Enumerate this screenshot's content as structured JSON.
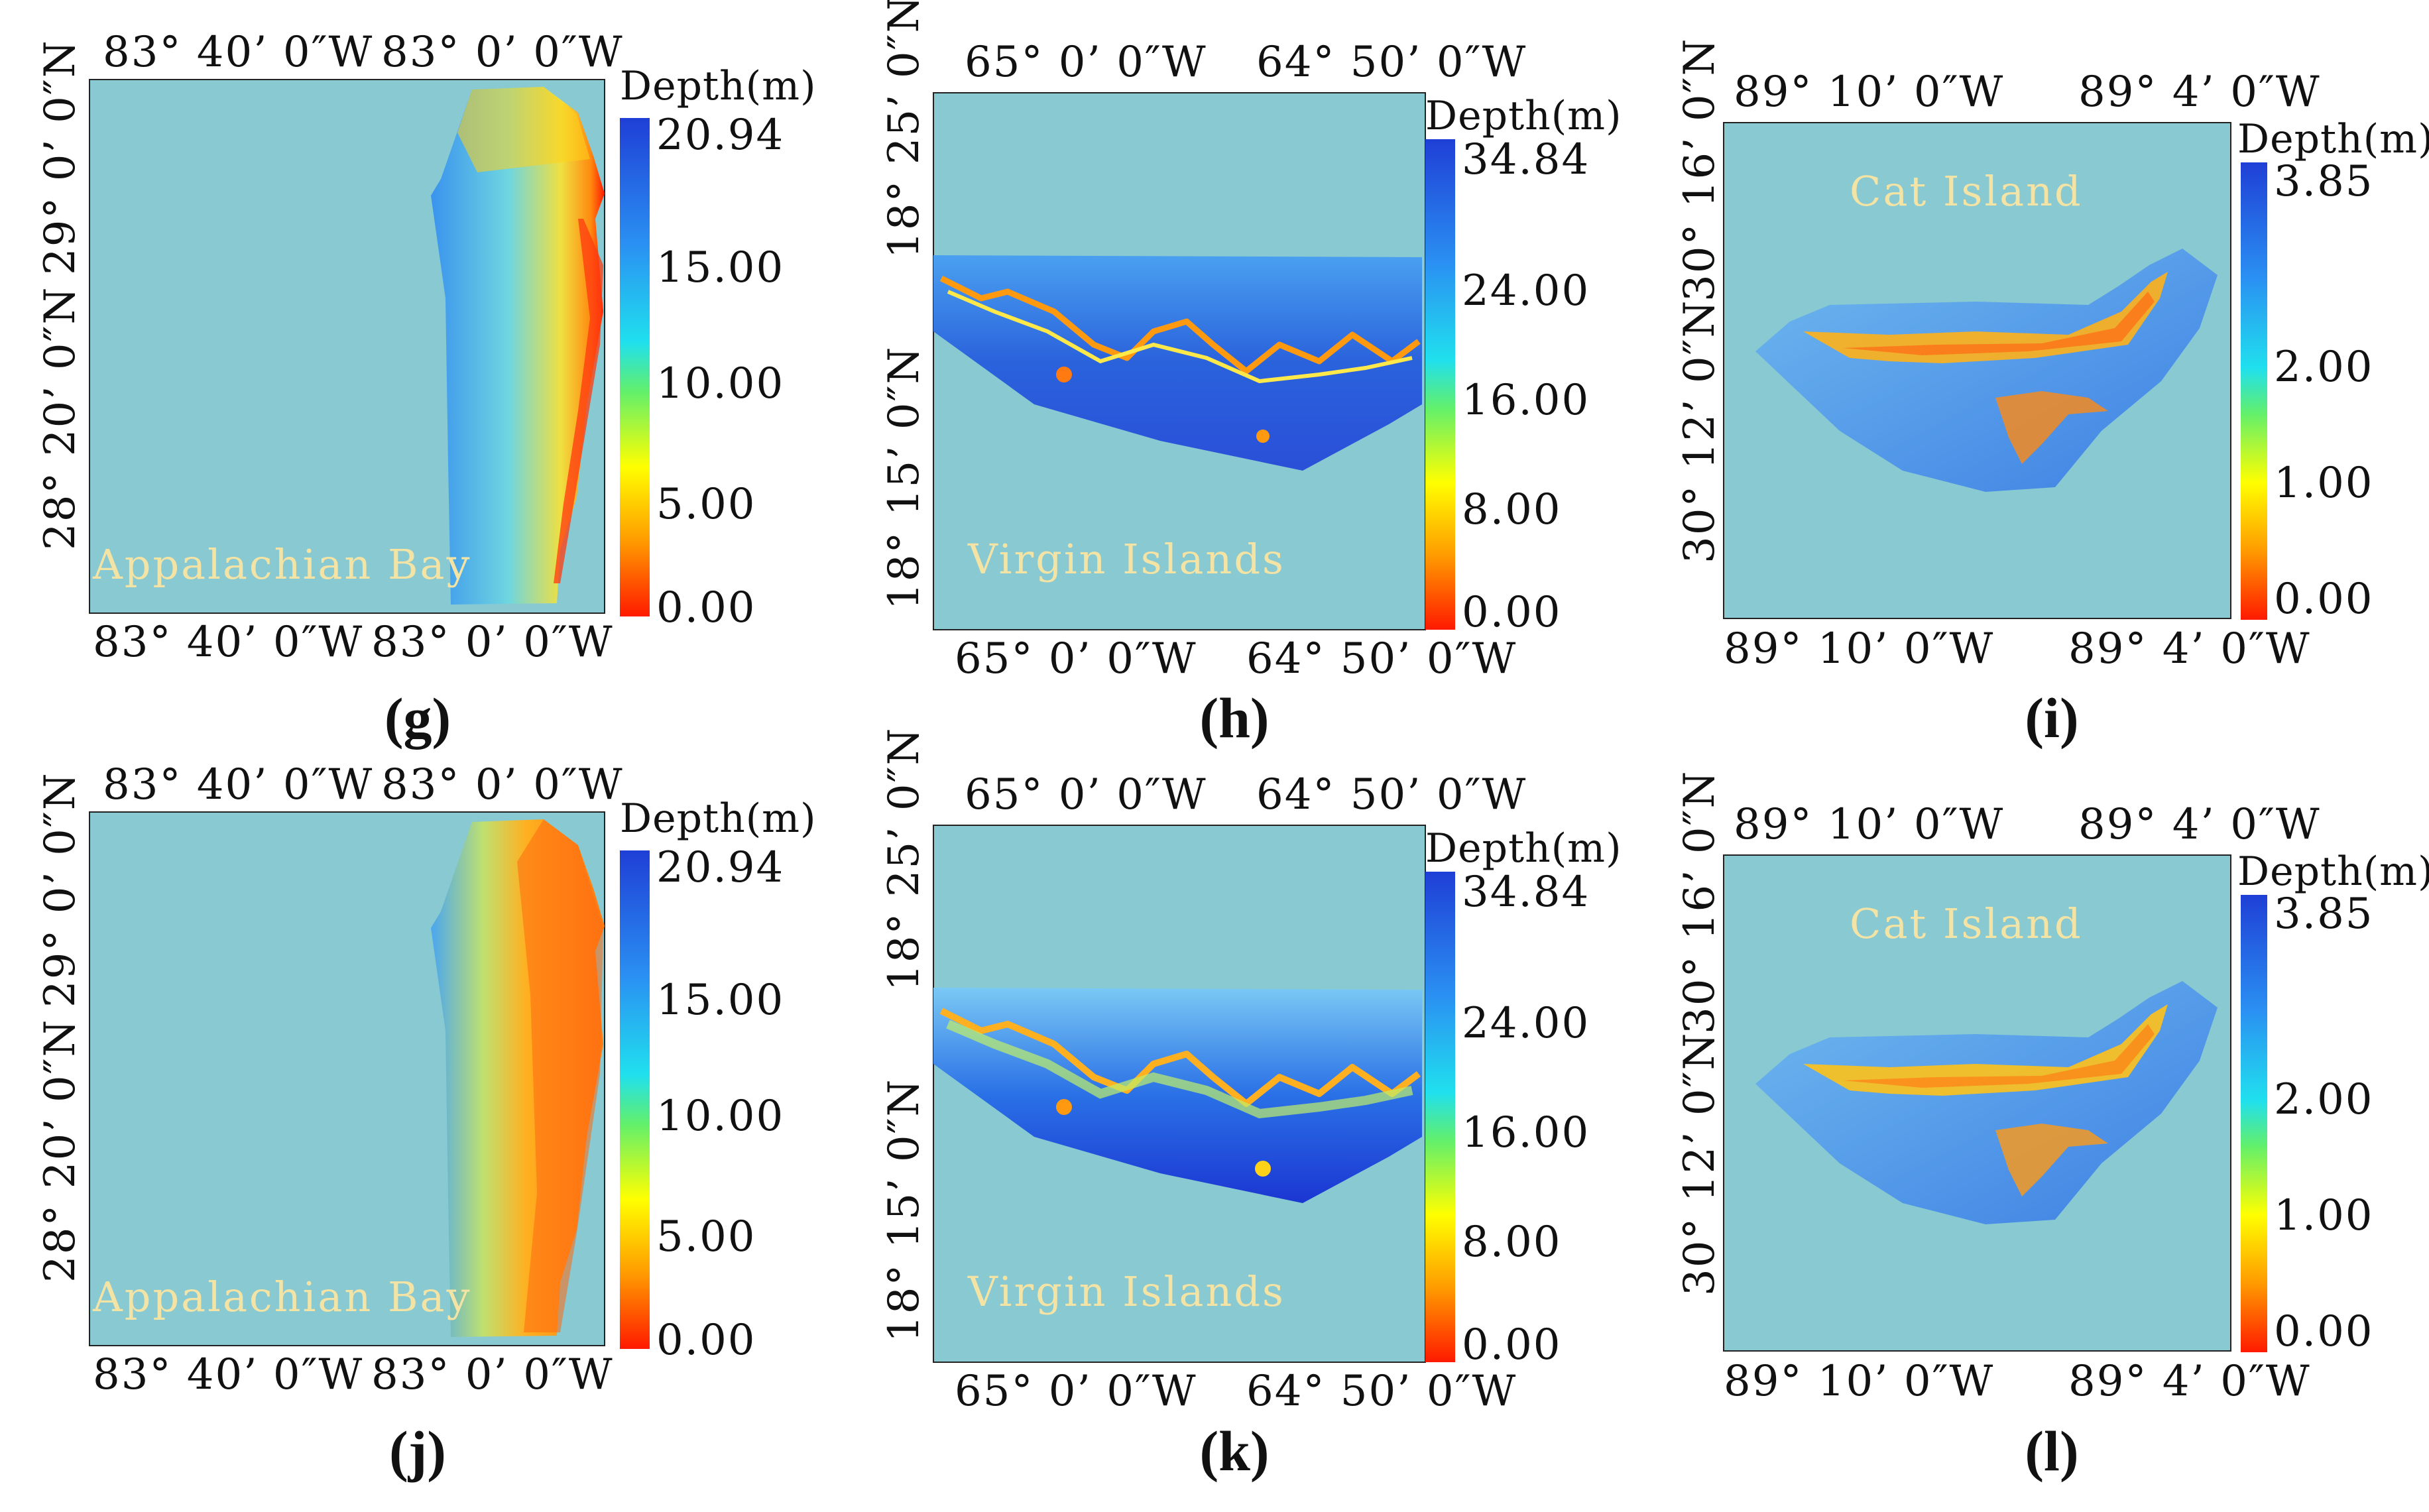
{
  "figure": {
    "colors": {
      "sea": "#88c9d2",
      "place_text": "#f3e3a5"
    },
    "colorbar_title": "Depth(m)",
    "panels": [
      {
        "label": "(g)",
        "place": "Appalachian Bay",
        "top_lon": [
          "83°  40’ 0″W",
          "83°  0’ 0″W"
        ],
        "bottom_lon": [
          "83°  40’ 0″W",
          "83°  0’ 0″W"
        ],
        "lat": [
          "29°  0’ 0″N",
          "28°  20’ 0″N"
        ],
        "ticks": [
          "20.94",
          "15.00",
          "10.00",
          "5.00",
          "0.00"
        ]
      },
      {
        "label": "(h)",
        "place": "Virgin Islands",
        "top_lon": [
          "65°  0’ 0″W",
          "64°  50’ 0″W"
        ],
        "bottom_lon": [
          "65°  0’ 0″W",
          "64°  50’ 0″W"
        ],
        "lat": [
          "18°  25’ 0″N",
          "18°  15’ 0″N"
        ],
        "ticks": [
          "34.84",
          "24.00",
          "16.00",
          "8.00",
          "0.00"
        ]
      },
      {
        "label": "(i)",
        "place": "Cat Island",
        "top_lon": [
          "89°  10’ 0″W",
          "89°  4’ 0″W"
        ],
        "bottom_lon": [
          "89°  10’ 0″W",
          "89°  4’ 0″W"
        ],
        "lat": [
          "30°  16’ 0″N",
          "30°  12’ 0″N"
        ],
        "ticks": [
          "3.85",
          "2.00",
          "1.00",
          "0.00"
        ]
      },
      {
        "label": "(j)",
        "place": "Appalachian Bay",
        "top_lon": [
          "83°  40’ 0″W",
          "83°  0’ 0″W"
        ],
        "bottom_lon": [
          "83°  40’ 0″W",
          "83°  0’ 0″W"
        ],
        "lat": [
          "29°  0’ 0″N",
          "28°  20’ 0″N"
        ],
        "ticks": [
          "20.94",
          "15.00",
          "10.00",
          "5.00",
          "0.00"
        ]
      },
      {
        "label": "(k)",
        "place": "Virgin Islands",
        "top_lon": [
          "65°  0’ 0″W",
          "64°  50’ 0″W"
        ],
        "bottom_lon": [
          "65°  0’ 0″W",
          "64°  50’ 0″W"
        ],
        "lat": [
          "18°  25’ 0″N",
          "18°  15’ 0″N"
        ],
        "ticks": [
          "34.84",
          "24.00",
          "16.00",
          "8.00",
          "0.00"
        ]
      },
      {
        "label": "(l)",
        "place": "Cat Island",
        "top_lon": [
          "89°  10’ 0″W",
          "89°  4’ 0″W"
        ],
        "bottom_lon": [
          "89°  10’ 0″W",
          "89°  4’ 0″W"
        ],
        "lat": [
          "30°  16’ 0″N",
          "30°  12’ 0″N"
        ],
        "ticks": [
          "3.85",
          "2.00",
          "1.00",
          "0.00"
        ]
      }
    ]
  }
}
